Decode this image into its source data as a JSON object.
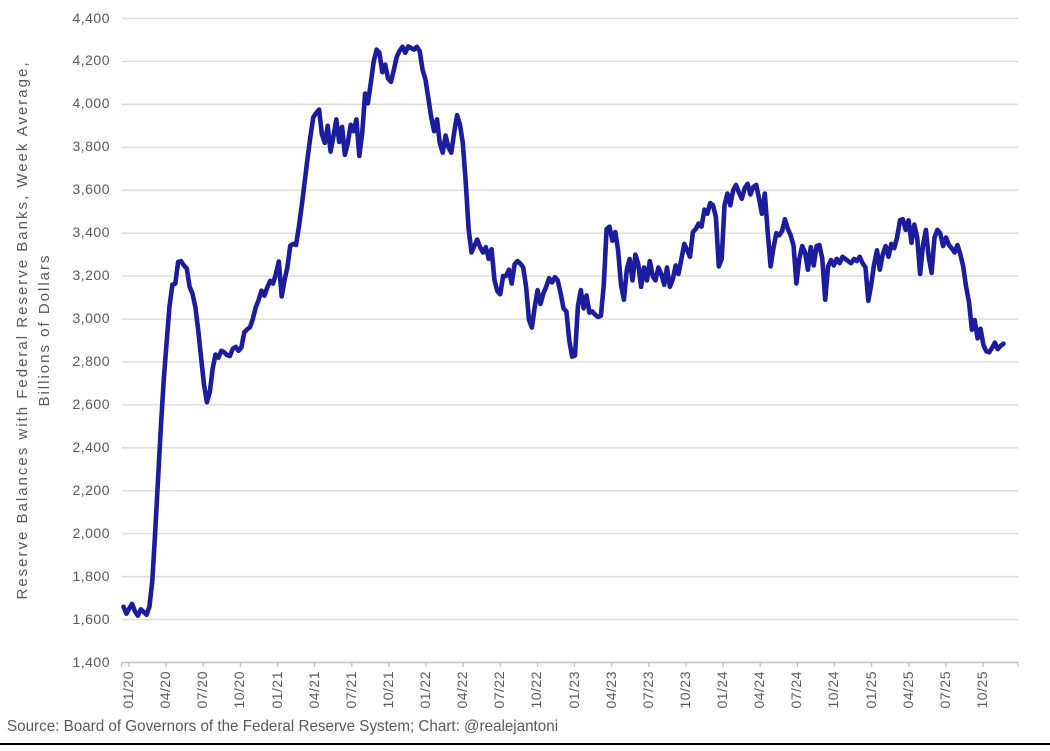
{
  "chart_data": {
    "type": "line",
    "title": "",
    "ylabel_line1": "Reserve Balances with Federal Reserve Banks, Week Average,",
    "ylabel_line2": "Billions of Dollars",
    "xlabel": "",
    "ylim": [
      1400,
      4400
    ],
    "y_step": 200,
    "grid": "horizontal",
    "legend_position": "none",
    "line_color": "#1c1c9e",
    "gridline_color": "#d9d9d9",
    "axis_color": "#c0c0c0",
    "text_color": "#595959",
    "y_tick_labels": [
      "4,400",
      "4,200",
      "4,000",
      "3,800",
      "3,600",
      "3,400",
      "3,200",
      "3,000",
      "2,800",
      "2,600",
      "2,400",
      "2,200",
      "2,000",
      "1,800",
      "1,600",
      "1,400"
    ],
    "x_tick_labels": [
      "01/20",
      "04/20",
      "07/20",
      "10/20",
      "01/21",
      "04/21",
      "07/21",
      "10/21",
      "01/22",
      "04/22",
      "07/22",
      "10/22",
      "01/23",
      "04/23",
      "07/23",
      "10/23",
      "01/24",
      "04/24",
      "07/24",
      "10/24",
      "01/25",
      "04/25",
      "07/25",
      "10/25"
    ],
    "series": [
      {
        "name": "Reserve Balances with Federal Reserve Banks, Week Average, Billions of Dollars",
        "values": [
          1660,
          1627,
          1652,
          1673,
          1638,
          1618,
          1648,
          1636,
          1622,
          1660,
          1780,
          2000,
          2250,
          2500,
          2720,
          2890,
          3060,
          3160,
          3165,
          3265,
          3270,
          3250,
          3235,
          3150,
          3118,
          3055,
          2945,
          2820,
          2695,
          2612,
          2660,
          2770,
          2835,
          2820,
          2852,
          2845,
          2832,
          2828,
          2862,
          2870,
          2852,
          2868,
          2938,
          2952,
          2962,
          3002,
          3055,
          3090,
          3132,
          3108,
          3148,
          3178,
          3165,
          3210,
          3268,
          3105,
          3180,
          3242,
          3342,
          3350,
          3345,
          3430,
          3530,
          3640,
          3750,
          3850,
          3940,
          3960,
          3975,
          3860,
          3820,
          3900,
          3780,
          3850,
          3930,
          3825,
          3895,
          3765,
          3820,
          3905,
          3875,
          3930,
          3760,
          3865,
          4050,
          4005,
          4100,
          4200,
          4255,
          4240,
          4150,
          4185,
          4120,
          4105,
          4160,
          4220,
          4250,
          4268,
          4240,
          4270,
          4262,
          4255,
          4268,
          4248,
          4160,
          4115,
          4030,
          3940,
          3875,
          3930,
          3820,
          3775,
          3855,
          3800,
          3775,
          3870,
          3950,
          3905,
          3820,
          3640,
          3420,
          3310,
          3340,
          3370,
          3335,
          3310,
          3335,
          3280,
          3325,
          3180,
          3130,
          3115,
          3200,
          3200,
          3230,
          3165,
          3255,
          3270,
          3258,
          3240,
          3150,
          2995,
          2960,
          3055,
          3135,
          3070,
          3120,
          3150,
          3190,
          3170,
          3195,
          3180,
          3120,
          3050,
          3035,
          2900,
          2825,
          2830,
          3060,
          3135,
          3050,
          3110,
          3030,
          3035,
          3020,
          3010,
          3015,
          3160,
          3420,
          3430,
          3365,
          3405,
          3320,
          3160,
          3090,
          3230,
          3280,
          3180,
          3300,
          3255,
          3150,
          3240,
          3180,
          3270,
          3200,
          3180,
          3240,
          3210,
          3160,
          3240,
          3150,
          3185,
          3250,
          3210,
          3280,
          3350,
          3320,
          3290,
          3405,
          3420,
          3445,
          3430,
          3510,
          3490,
          3540,
          3530,
          3475,
          3245,
          3280,
          3530,
          3585,
          3530,
          3600,
          3625,
          3590,
          3560,
          3610,
          3630,
          3580,
          3615,
          3625,
          3560,
          3490,
          3585,
          3405,
          3245,
          3330,
          3400,
          3390,
          3410,
          3465,
          3420,
          3390,
          3340,
          3166,
          3280,
          3340,
          3310,
          3230,
          3335,
          3250,
          3340,
          3345,
          3280,
          3090,
          3245,
          3275,
          3250,
          3280,
          3260,
          3290,
          3280,
          3270,
          3260,
          3280,
          3270,
          3290,
          3260,
          3240,
          3085,
          3160,
          3255,
          3320,
          3230,
          3300,
          3340,
          3290,
          3350,
          3330,
          3380,
          3460,
          3465,
          3415,
          3460,
          3355,
          3440,
          3380,
          3210,
          3345,
          3415,
          3290,
          3215,
          3380,
          3415,
          3400,
          3340,
          3380,
          3345,
          3330,
          3310,
          3345,
          3300,
          3245,
          3150,
          3080,
          2950,
          2995,
          2910,
          2955,
          2880,
          2850,
          2845,
          2865,
          2890,
          2860,
          2875,
          2885
        ]
      }
    ]
  },
  "footer": {
    "source": "Source: Board of Governors of the Federal Reserve System; Chart: @realejantoni"
  }
}
